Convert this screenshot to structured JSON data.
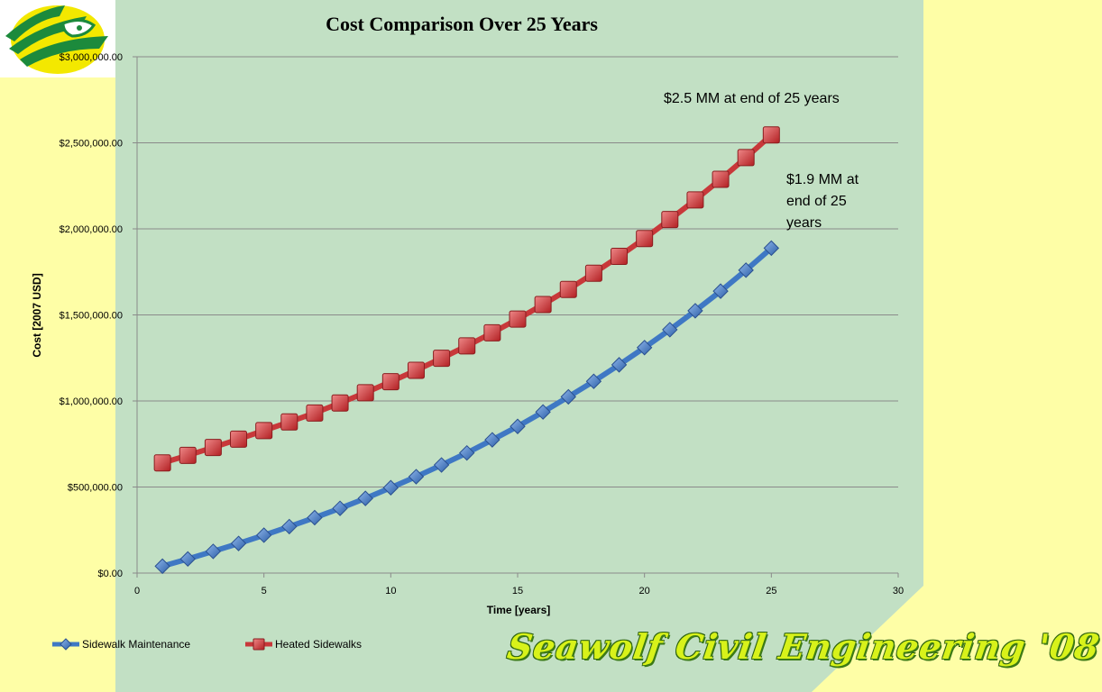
{
  "chart_data": {
    "type": "line",
    "title": "Cost Comparison Over 25 Years",
    "xlabel": "Time [years]",
    "ylabel": "Cost [2007 USD]",
    "xlim": [
      0,
      30
    ],
    "ylim": [
      0,
      3000000
    ],
    "x_ticks": [
      "0",
      "5",
      "10",
      "15",
      "20",
      "25",
      "30"
    ],
    "x_tick_values": [
      0,
      5,
      10,
      15,
      20,
      25,
      30
    ],
    "y_ticks": [
      "$0.00",
      "$500,000.00",
      "$1,000,000.00",
      "$1,500,000.00",
      "$2,000,000.00",
      "$2,500,000.00",
      "$3,000,000.00"
    ],
    "y_tick_values": [
      0,
      500000,
      1000000,
      1500000,
      2000000,
      2500000,
      3000000
    ],
    "grid": "horizontal",
    "legend_position": "bottom-left",
    "series": [
      {
        "name": "Sidewalk Maintenance",
        "color": "#3f78c4",
        "marker": "diamond",
        "x": [
          1,
          2,
          3,
          4,
          5,
          6,
          7,
          8,
          9,
          10,
          11,
          12,
          13,
          14,
          15,
          16,
          17,
          18,
          19,
          20,
          21,
          22,
          23,
          24,
          25
        ],
        "y": [
          40000,
          82000,
          126000,
          172000,
          220000,
          270000,
          322000,
          376000,
          434000,
          496000,
          560000,
          628000,
          698000,
          774000,
          852000,
          936000,
          1024000,
          1114000,
          1210000,
          1310000,
          1414000,
          1524000,
          1638000,
          1760000,
          1888000
        ]
      },
      {
        "name": "Heated Sidewalks",
        "color": "#c8383a",
        "marker": "square",
        "x": [
          1,
          2,
          3,
          4,
          5,
          6,
          7,
          8,
          9,
          10,
          11,
          12,
          13,
          14,
          15,
          16,
          17,
          18,
          19,
          20,
          21,
          22,
          23,
          24,
          25
        ],
        "y": [
          640000,
          684000,
          730000,
          778000,
          828000,
          878000,
          930000,
          988000,
          1048000,
          1112000,
          1178000,
          1248000,
          1320000,
          1396000,
          1476000,
          1560000,
          1648000,
          1742000,
          1840000,
          1944000,
          2054000,
          2168000,
          2288000,
          2414000,
          2546000
        ]
      }
    ],
    "annotations": [
      {
        "text": "$2.5 MM at end of 25 years"
      },
      {
        "lines": [
          "$1.9 MM at",
          "end of 25",
          "years"
        ]
      }
    ]
  },
  "branding": {
    "text": "Seawolf Civil Engineering  '08"
  },
  "logo": {
    "name": "seawolf-logo"
  }
}
